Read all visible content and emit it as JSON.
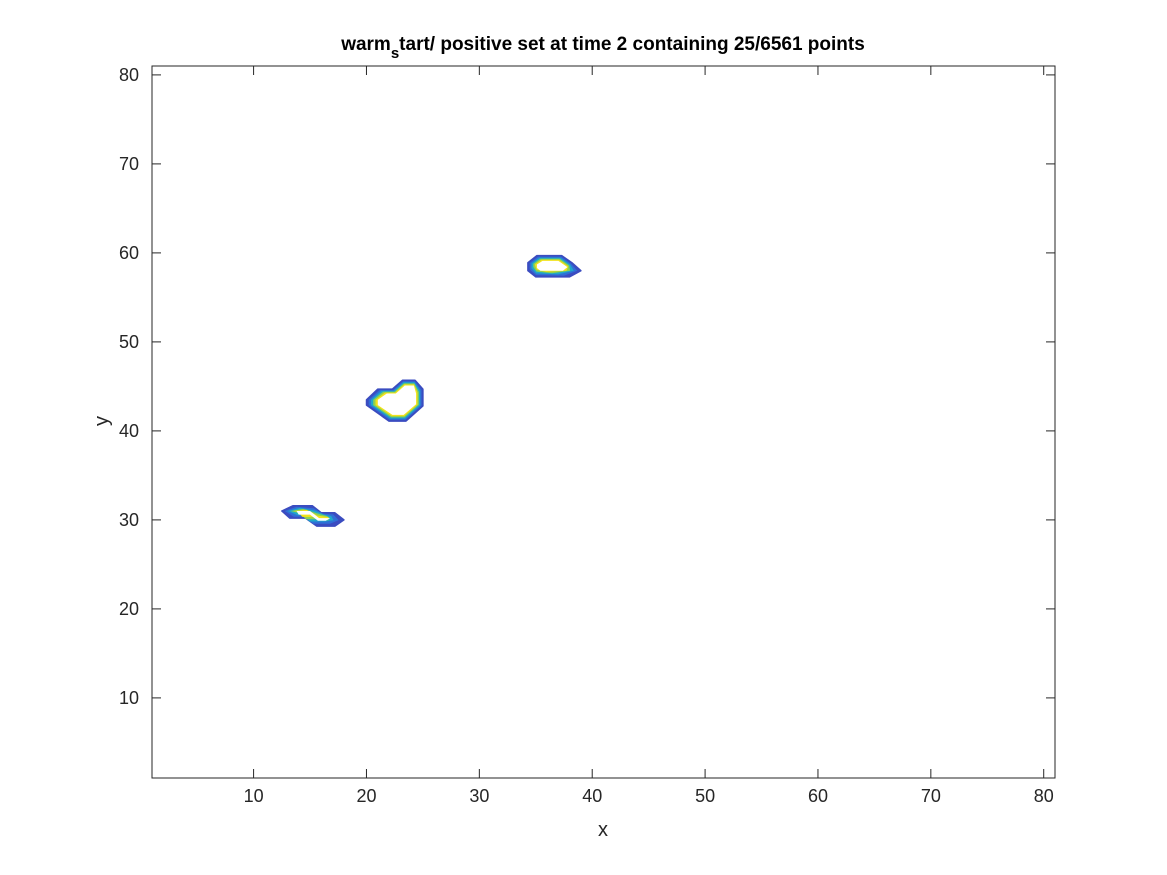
{
  "chart_data": {
    "type": "contour",
    "title": {
      "part1": "warm",
      "subscript": "s",
      "part2": "tart/ positive set at time 2 containing 25/6561 points"
    },
    "xlabel": "x",
    "ylabel": "y",
    "xlim": [
      1,
      81
    ],
    "ylim": [
      1,
      81
    ],
    "xticks": [
      10,
      20,
      30,
      40,
      50,
      60,
      70,
      80
    ],
    "yticks": [
      10,
      20,
      30,
      40,
      50,
      60,
      70,
      80
    ],
    "grid": false,
    "level_colors": [
      "#3b4cc0",
      "#2f6fd6",
      "#1fa8c9",
      "#8fd14f",
      "#f2e21a",
      "#ffffff"
    ],
    "regions": [
      {
        "name": "region-1",
        "outline": [
          [
            12.5,
            31
          ],
          [
            13.5,
            31.6
          ],
          [
            15.2,
            31.6
          ],
          [
            16.0,
            30.8
          ],
          [
            17.2,
            30.8
          ],
          [
            18.0,
            30.0
          ],
          [
            17.2,
            29.3
          ],
          [
            15.6,
            29.3
          ],
          [
            14.6,
            30.2
          ],
          [
            13.2,
            30.2
          ]
        ],
        "core": [
          [
            13.8,
            31
          ],
          [
            15.0,
            31
          ],
          [
            15.8,
            30.2
          ],
          [
            16.8,
            30.2
          ],
          [
            16.4,
            29.9
          ],
          [
            15.7,
            29.9
          ],
          [
            15.0,
            30.6
          ],
          [
            14.0,
            30.6
          ]
        ]
      },
      {
        "name": "region-2",
        "outline": [
          [
            20.0,
            43.5
          ],
          [
            21.0,
            44.7
          ],
          [
            22.3,
            44.7
          ],
          [
            23.2,
            45.7
          ],
          [
            24.3,
            45.7
          ],
          [
            25.0,
            44.7
          ],
          [
            25.0,
            42.8
          ],
          [
            23.5,
            41.1
          ],
          [
            22.0,
            41.1
          ],
          [
            20.0,
            42.9
          ]
        ],
        "core": [
          [
            21.0,
            43.5
          ],
          [
            21.8,
            44.2
          ],
          [
            22.6,
            44.2
          ],
          [
            23.4,
            45.1
          ],
          [
            24.2,
            45.1
          ],
          [
            24.4,
            44.2
          ],
          [
            24.4,
            43.0
          ],
          [
            23.3,
            41.8
          ],
          [
            22.3,
            41.8
          ],
          [
            21.0,
            42.9
          ]
        ]
      },
      {
        "name": "region-3",
        "outline": [
          [
            34.3,
            58.9
          ],
          [
            35.1,
            59.7
          ],
          [
            37.3,
            59.7
          ],
          [
            38.2,
            58.9
          ],
          [
            39.0,
            58.0
          ],
          [
            38.0,
            57.3
          ],
          [
            35.0,
            57.3
          ],
          [
            34.3,
            58.0
          ]
        ],
        "core": [
          [
            35.1,
            58.7
          ],
          [
            35.6,
            59.1
          ],
          [
            37.0,
            59.1
          ],
          [
            37.8,
            58.4
          ],
          [
            37.4,
            58.0
          ],
          [
            35.4,
            58.0
          ],
          [
            35.1,
            58.3
          ]
        ]
      }
    ]
  }
}
